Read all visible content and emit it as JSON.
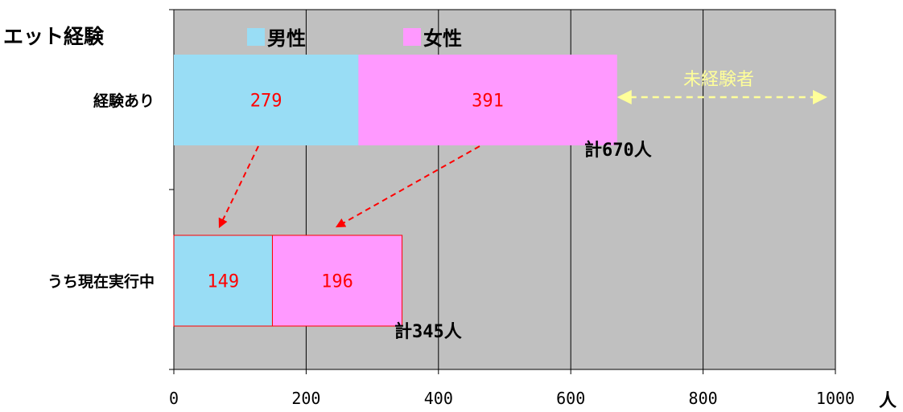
{
  "chart_data": {
    "type": "bar",
    "orientation": "horizontal",
    "stacked": true,
    "title": "エット経験",
    "categories": [
      "経験あり",
      "うち現在実行中"
    ],
    "series": [
      {
        "name": "男性",
        "values": [
          279,
          149
        ]
      },
      {
        "name": "女性",
        "values": [
          391,
          196
        ]
      }
    ],
    "totals": [
      "計670人",
      "計345人"
    ],
    "xlim": [
      0,
      1000
    ],
    "xticks": [
      0,
      200,
      400,
      600,
      800,
      1000
    ],
    "xunit": "人",
    "annotation": {
      "text": "未経験者",
      "from": 670,
      "to": 1000
    },
    "grid": "vertical",
    "legend": "top",
    "colors": {
      "male": "#99ddf5",
      "female": "#ff99ff",
      "plot_bg": "#c0c0c0",
      "value_text": "#ff0000",
      "arrow_red": "#ff0000",
      "annotation": "#ffff99",
      "subset_border": "#ff0000"
    }
  }
}
